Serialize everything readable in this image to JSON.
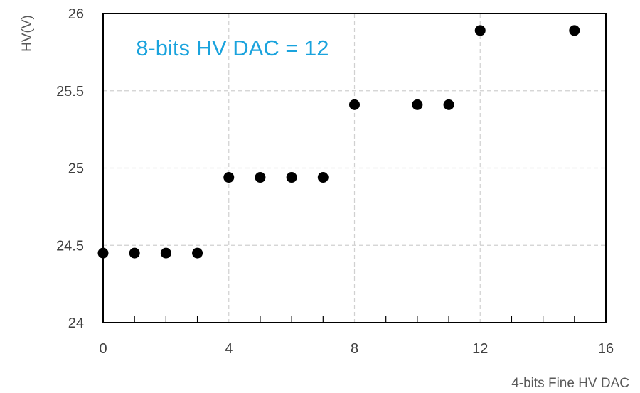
{
  "chart_data": {
    "type": "scatter",
    "title": "",
    "xlabel": "4-bits Fine HV DAC",
    "ylabel": "HV(V)",
    "xlim": [
      0,
      16
    ],
    "ylim": [
      24,
      26
    ],
    "x_ticks": [
      0,
      4,
      8,
      12,
      16
    ],
    "y_ticks": [
      24,
      24.5,
      25,
      25.5,
      26
    ],
    "x_tick_labels": [
      "0",
      "4",
      "8",
      "12",
      "16"
    ],
    "y_tick_labels": [
      "24",
      "24.5",
      "25",
      "25.5",
      "26"
    ],
    "x_minor_ticks": [
      1,
      2,
      3,
      5,
      6,
      7,
      9,
      10,
      11,
      13,
      14,
      15
    ],
    "grid": true,
    "legend": "none",
    "marker_color": "#000000",
    "annotation": {
      "text": "8-bits HV DAC = 12",
      "color": "#1aa3dd",
      "x": 1,
      "y": 25.78
    },
    "series": [
      {
        "x": [
          0,
          1,
          2,
          3,
          4,
          5,
          6,
          7,
          8,
          10,
          11,
          12,
          15
        ],
        "y": [
          24.45,
          24.45,
          24.45,
          24.45,
          24.94,
          24.94,
          24.94,
          24.94,
          25.41,
          25.41,
          25.41,
          25.89,
          25.89
        ]
      }
    ]
  }
}
